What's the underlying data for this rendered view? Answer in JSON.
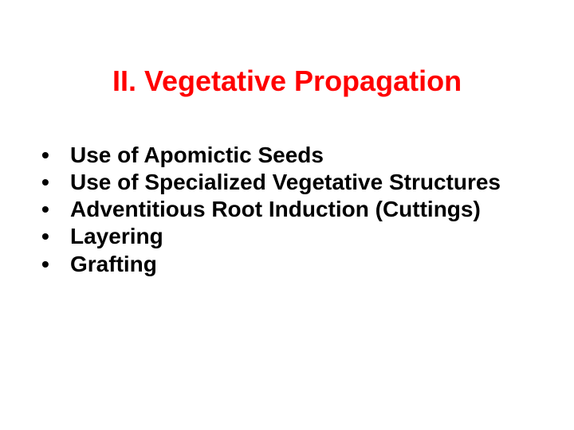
{
  "slide": {
    "title": "II. Vegetative Propagation",
    "title_color": "#ff0000",
    "title_fontsize": 36,
    "body_color": "#000000",
    "body_fontsize": 28,
    "background_color": "#ffffff",
    "bullet_char": "•",
    "bullets": [
      "Use of Apomictic Seeds",
      "Use of Specialized Vegetative Structures",
      "Adventitious Root Induction (Cuttings)",
      "Layering",
      "Grafting"
    ]
  }
}
